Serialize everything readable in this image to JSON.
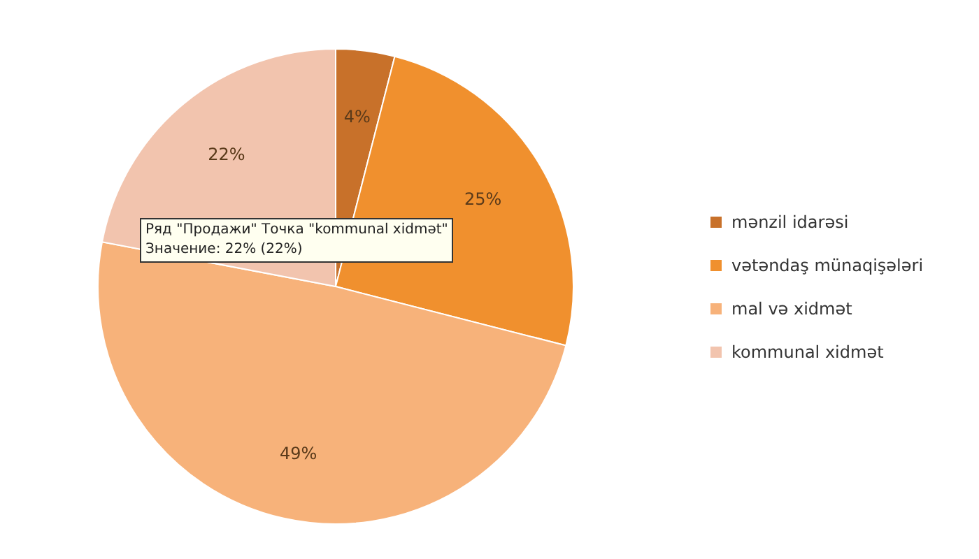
{
  "chart_data": {
    "type": "pie",
    "categories": [
      "mənzil idarəsi",
      "vətəndaş münaqişələri",
      "mal və xidmət",
      "kommunal xidmət"
    ],
    "values": [
      4,
      25,
      49,
      22
    ],
    "value_labels": [
      "4%",
      "25%",
      "49%",
      "22%"
    ],
    "colors": [
      "#c8712a",
      "#f0902e",
      "#f7b27a",
      "#f2c4ae"
    ],
    "legend": "right",
    "annotations": [
      "Ряд \"Продажи\" Точка \"kommunal xidmət\"",
      "Значение: 22% (22%)"
    ]
  }
}
